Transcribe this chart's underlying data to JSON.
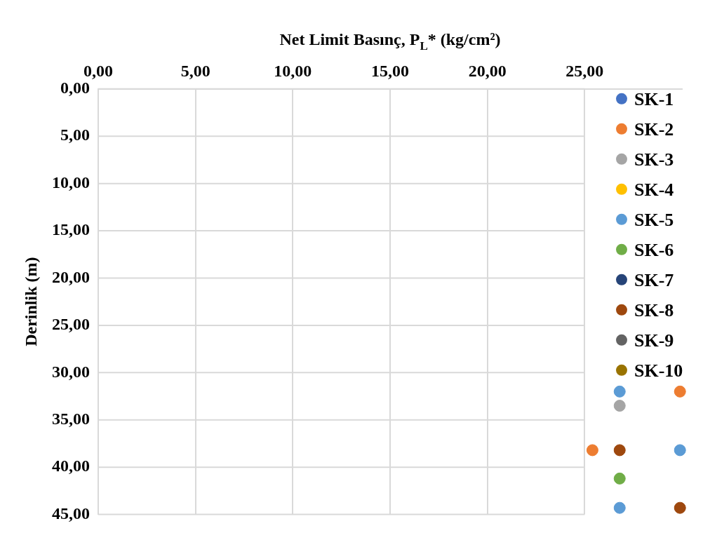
{
  "chart_data": {
    "type": "scatter",
    "xlabel": "Net Limit Basınç, P$_{L}$* (kg/cm²)",
    "ylabel": "Derinlik (m)",
    "xlim": [
      0,
      30
    ],
    "xticks": [
      {
        "value": 0,
        "label": "0,00"
      },
      {
        "value": 5,
        "label": "5,00"
      },
      {
        "value": 10,
        "label": "10,00"
      },
      {
        "value": 15,
        "label": "15,00"
      },
      {
        "value": 20,
        "label": "20,00"
      },
      {
        "value": 25,
        "label": "25,00"
      }
    ],
    "ylim": [
      45,
      0
    ],
    "yticks": [
      {
        "value": 0,
        "label": "0,00"
      },
      {
        "value": 5,
        "label": "5,00"
      },
      {
        "value": 10,
        "label": "10,00"
      },
      {
        "value": 15,
        "label": "15,00"
      },
      {
        "value": 20,
        "label": "20,00"
      },
      {
        "value": 25,
        "label": "25,00"
      },
      {
        "value": 30,
        "label": "30,00"
      },
      {
        "value": 35,
        "label": "35,00"
      },
      {
        "value": 40,
        "label": "40,00"
      },
      {
        "value": 45,
        "label": "45,00"
      }
    ],
    "grid": true,
    "legend": "right",
    "marker": "circle",
    "series": [
      {
        "name": "SK-1",
        "color": "#4472c4"
      },
      {
        "name": "SK-2",
        "color": "#ed7d31",
        "x": [
          29.9,
          25.4
        ],
        "values": [
          32.0,
          38.2
        ]
      },
      {
        "name": "SK-3",
        "color": "#a5a5a5",
        "x": [
          26.8
        ],
        "values": [
          33.5
        ]
      },
      {
        "name": "SK-4",
        "color": "#ffc000"
      },
      {
        "name": "SK-5",
        "color": "#5b9bd5",
        "x": [
          26.8,
          29.9,
          26.8
        ],
        "values": [
          32.0,
          38.2,
          44.3
        ]
      },
      {
        "name": "SK-6",
        "color": "#70ad47",
        "x": [
          26.8
        ],
        "values": [
          41.2
        ]
      },
      {
        "name": "SK-7",
        "color": "#264478"
      },
      {
        "name": "SK-8",
        "color": "#9e480e",
        "x": [
          26.8,
          29.9
        ],
        "values": [
          38.2,
          44.3
        ]
      },
      {
        "name": "SK-9",
        "color": "#636363"
      },
      {
        "name": "SK-10",
        "color": "#997300"
      }
    ]
  }
}
